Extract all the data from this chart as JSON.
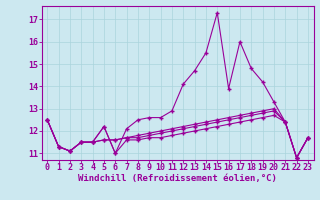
{
  "xlabel": "Windchill (Refroidissement éolien,°C)",
  "background_color": "#cce8f0",
  "line_color": "#990099",
  "grid_color": "#aad4dd",
  "xlim": [
    -0.5,
    23.5
  ],
  "ylim": [
    10.7,
    17.6
  ],
  "yticks": [
    11,
    12,
    13,
    14,
    15,
    16,
    17
  ],
  "xticks": [
    0,
    1,
    2,
    3,
    4,
    5,
    6,
    7,
    8,
    9,
    10,
    11,
    12,
    13,
    14,
    15,
    16,
    17,
    18,
    19,
    20,
    21,
    22,
    23
  ],
  "series": [
    [
      12.5,
      11.3,
      11.1,
      11.5,
      11.5,
      12.2,
      11.0,
      12.1,
      12.5,
      12.6,
      12.6,
      12.9,
      14.1,
      14.7,
      15.5,
      17.3,
      13.9,
      16.0,
      14.8,
      14.2,
      13.3,
      12.4,
      10.8,
      11.7
    ],
    [
      12.5,
      11.3,
      11.1,
      11.5,
      11.5,
      12.2,
      11.0,
      11.6,
      11.6,
      11.7,
      11.7,
      11.8,
      11.9,
      12.0,
      12.1,
      12.2,
      12.3,
      12.4,
      12.5,
      12.6,
      12.7,
      12.4,
      10.8,
      11.7
    ],
    [
      12.5,
      11.3,
      11.1,
      11.5,
      11.5,
      11.6,
      11.6,
      11.7,
      11.7,
      11.8,
      11.9,
      12.0,
      12.1,
      12.2,
      12.3,
      12.4,
      12.5,
      12.6,
      12.7,
      12.8,
      12.9,
      12.4,
      10.8,
      11.7
    ],
    [
      12.5,
      11.3,
      11.1,
      11.5,
      11.5,
      11.6,
      11.6,
      11.7,
      11.8,
      11.9,
      12.0,
      12.1,
      12.2,
      12.3,
      12.4,
      12.5,
      12.6,
      12.7,
      12.8,
      12.9,
      13.0,
      12.4,
      10.8,
      11.7
    ]
  ],
  "tick_fontsize": 6,
  "xlabel_fontsize": 6.5
}
